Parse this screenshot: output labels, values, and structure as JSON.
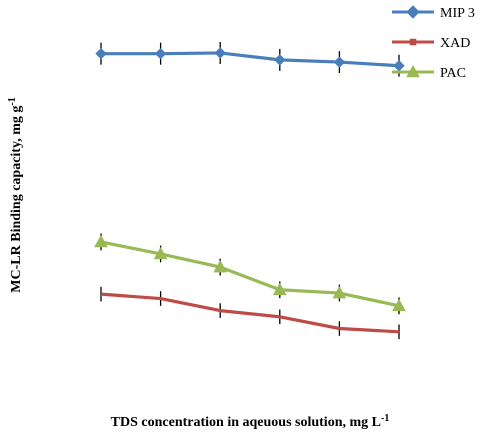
{
  "chart_data": {
    "type": "line",
    "title": "",
    "xlabel": "TDS concentration in aqeuous solution, mg L",
    "xlabel_sup": "-1",
    "ylabel": "MC-LR Binding capacity, mg g",
    "ylabel_sup": "-1",
    "grid": false,
    "legend_position": "top-right",
    "x": [
      1,
      2,
      3,
      4,
      5,
      6
    ],
    "ylim": [
      0,
      110
    ],
    "series": [
      {
        "name": "MIP 3",
        "color": "#4a7ebb",
        "marker": "diamond",
        "values": [
          97.5,
          97.5,
          97.7,
          95.8,
          95.2,
          94.2
        ],
        "error": [
          3.0,
          3.0,
          3.0,
          3.0,
          3.0,
          3.0
        ]
      },
      {
        "name": "XAD",
        "color": "#be4b48",
        "marker": "square",
        "values": [
          31.7,
          30.5,
          27.2,
          25.5,
          22.3,
          21.4
        ],
        "error": [
          2.0,
          2.0,
          2.0,
          2.0,
          2.0,
          2.0
        ]
      },
      {
        "name": "PAC",
        "color": "#98b954",
        "marker": "triangle",
        "values": [
          46.0,
          42.7,
          39.1,
          32.9,
          32.0,
          28.5
        ],
        "error": [
          2.3,
          2.3,
          2.3,
          2.3,
          2.3,
          2.3
        ]
      }
    ]
  }
}
